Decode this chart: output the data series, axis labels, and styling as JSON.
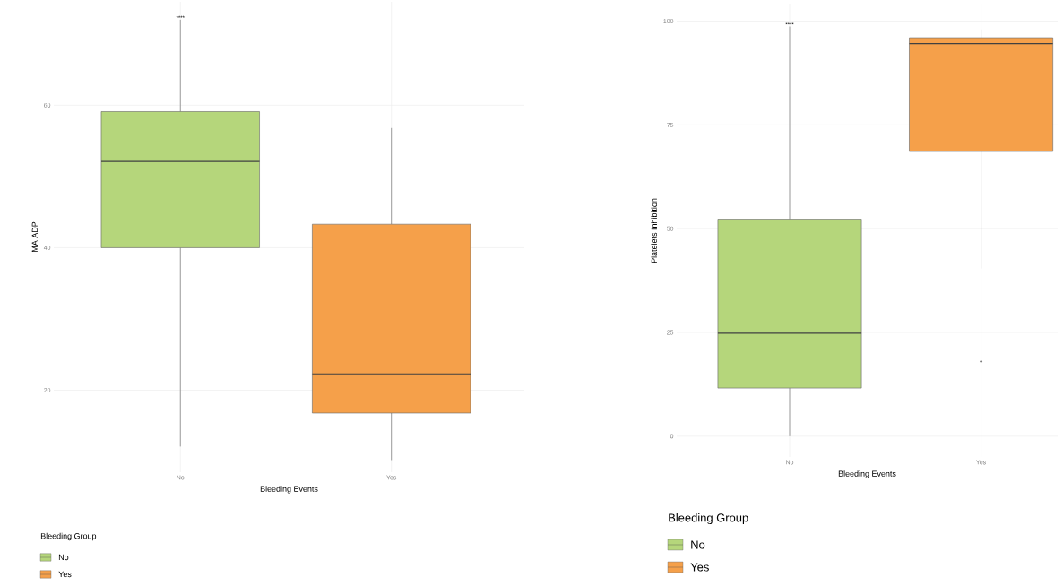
{
  "chart_data": [
    {
      "type": "box",
      "xlabel": "Bleeding Events",
      "ylabel": "MA ADP",
      "legend_title": "Bleeding Group",
      "legend": "bottom",
      "grid": true,
      "categories": [
        "No",
        "Yes"
      ],
      "series": [
        {
          "name": "No",
          "color": "#b5d67b",
          "boxes": [
            {
              "low": 12.1,
              "q1": 40,
              "median": 52.1,
              "q3": 59.1,
              "high": 72
            },
            null
          ]
        },
        {
          "name": "Yes",
          "color": "#f5a04a",
          "boxes": [
            null,
            {
              "low": 10.2,
              "q1": 16.8,
              "median": 22.3,
              "q3": 43.3,
              "high": 56.8
            }
          ]
        }
      ],
      "ylim": [
        8.5,
        74.5
      ],
      "yticks": [
        20,
        40,
        60
      ],
      "annotations": [
        "****"
      ]
    },
    {
      "type": "box",
      "xlabel": "Bleeding Events",
      "ylabel": "Platelets Inhibition",
      "legend_title": "Bleeding Group",
      "legend": "bottom",
      "grid": true,
      "categories": [
        "No",
        "Yes"
      ],
      "series": [
        {
          "name": "No",
          "color": "#b5d67b",
          "boxes": [
            {
              "low": 0,
              "q1": 11.6,
              "median": 24.8,
              "q3": 52.3,
              "high": 98.7
            },
            null
          ]
        },
        {
          "name": "Yes",
          "color": "#f5a04a",
          "boxes": [
            null,
            {
              "low": 40.4,
              "q1": 68.6,
              "median": 94.6,
              "q3": 96,
              "high": 98,
              "outliers": [
                18
              ]
            }
          ]
        }
      ],
      "ylim": [
        -5,
        104
      ],
      "yticks": [
        0,
        25,
        50,
        75,
        100
      ],
      "annotations": [
        "****"
      ]
    }
  ]
}
